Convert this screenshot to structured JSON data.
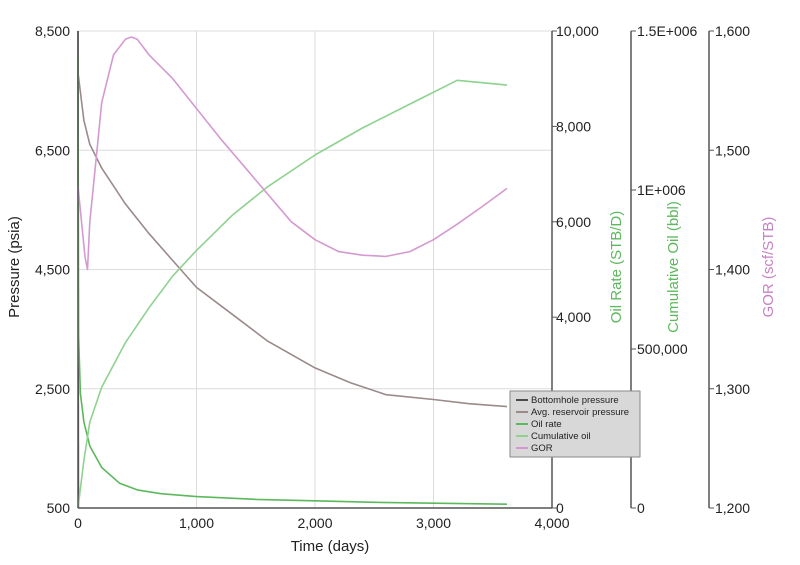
{
  "chart_data": {
    "type": "line",
    "title": "",
    "xlabel": "Time (days)",
    "xlim": [
      0,
      4000
    ],
    "xticks": [
      "0",
      "1,000",
      "2,000",
      "3,000",
      "4,000"
    ],
    "grid": true,
    "legend_position": "bottom-right",
    "axes": {
      "pressure": {
        "label": "Pressure (psia)",
        "lim": [
          500,
          8500
        ],
        "ticks": [
          "500",
          "2,500",
          "4,500",
          "6,500",
          "8,500"
        ],
        "color": "#222222"
      },
      "oil_rate": {
        "label": "Oil Rate (STB/D)",
        "lim": [
          0,
          10000
        ],
        "ticks": [
          "0",
          "4,000",
          "6,000",
          "8,000",
          "10,000"
        ],
        "color": "#5cb85c"
      },
      "cum_oil": {
        "label": "Cumulative Oil (bbl)",
        "lim": [
          0,
          1500000
        ],
        "ticks": [
          "0",
          "500,000",
          "1E+006",
          "1.5E+006"
        ],
        "color": "#5cb85c"
      },
      "gor": {
        "label": "GOR (scf/STB)",
        "lim": [
          1200,
          1600
        ],
        "ticks": [
          "1,200",
          "1,300",
          "1,400",
          "1,500",
          "1,600"
        ],
        "color": "#c882c3"
      }
    },
    "series": [
      {
        "name": "Bottomhole pressure",
        "axis": "pressure",
        "color": "#4a4a4a",
        "x": [
          0,
          3
        ],
        "y": [
          8500,
          500
        ]
      },
      {
        "name": "Avg. reservoir pressure",
        "axis": "pressure",
        "color": "#9a8a8a",
        "x": [
          0,
          50,
          100,
          200,
          400,
          600,
          800,
          1000,
          1300,
          1600,
          2000,
          2300,
          2600,
          3000,
          3300,
          3620
        ],
        "y": [
          7800,
          7000,
          6600,
          6200,
          5600,
          5100,
          4650,
          4200,
          3750,
          3300,
          2850,
          2600,
          2400,
          2320,
          2250,
          2200
        ]
      },
      {
        "name": "Oil rate",
        "axis": "oil_rate",
        "color": "#5cb85c",
        "x": [
          0,
          5,
          20,
          50,
          100,
          200,
          350,
          500,
          700,
          1000,
          1500,
          2000,
          2500,
          3000,
          3620
        ],
        "y": [
          9500,
          3600,
          2400,
          1800,
          1300,
          850,
          520,
          380,
          300,
          240,
          180,
          150,
          120,
          100,
          80
        ]
      },
      {
        "name": "Cumulative oil",
        "axis": "cum_oil",
        "color": "#8fd18f",
        "x": [
          0,
          50,
          100,
          200,
          400,
          600,
          800,
          1000,
          1300,
          1600,
          2000,
          2400,
          2800,
          3200,
          3620
        ],
        "y": [
          0,
          150000,
          270000,
          380000,
          520000,
          630000,
          730000,
          810000,
          920000,
          1010000,
          1110000,
          1195000,
          1270000,
          1345000,
          1330000
        ]
      },
      {
        "name": "GOR",
        "axis": "gor",
        "color": "#d49ad0",
        "x": [
          0,
          40,
          60,
          80,
          100,
          150,
          200,
          300,
          400,
          450,
          500,
          600,
          800,
          1000,
          1200,
          1500,
          1800,
          2000,
          2200,
          2400,
          2600,
          2800,
          3000,
          3200,
          3400,
          3620
        ],
        "y": [
          1470,
          1430,
          1410,
          1400,
          1440,
          1490,
          1540,
          1580,
          1593,
          1595,
          1593,
          1580,
          1560,
          1535,
          1510,
          1475,
          1440,
          1425,
          1415,
          1412,
          1411,
          1415,
          1425,
          1438,
          1452,
          1468
        ]
      }
    ]
  }
}
